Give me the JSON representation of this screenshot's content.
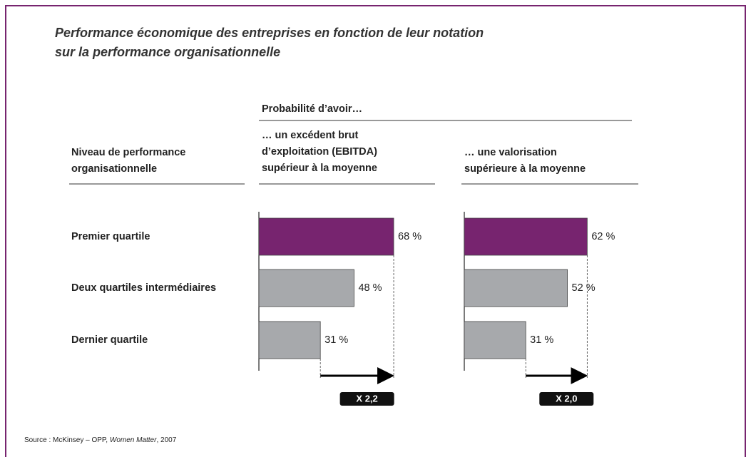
{
  "title_lines": [
    "Performance économique des entreprises en fonction de leur notation",
    "sur la performance organisationnelle"
  ],
  "group_label": "Probabilité d’avoir…",
  "row_header_lines": [
    "Niveau de performance",
    "organisationnelle"
  ],
  "chart_data": [
    {
      "type": "bar",
      "orientation": "horizontal",
      "title_lines": [
        "… un excédent brut",
        "d’exploitation (EBITDA)",
        "supérieur à la moyenne"
      ],
      "categories": [
        "Premier quartile",
        "Deux quartiles intermédiaires",
        "Dernier quartile"
      ],
      "values": [
        68,
        48,
        31
      ],
      "value_labels": [
        "68 %",
        "48 %",
        "31 %"
      ],
      "colors": [
        "#77246f",
        "#a7a9ac",
        "#a7a9ac"
      ],
      "xlim": [
        0,
        100
      ],
      "annotation": "X 2,2"
    },
    {
      "type": "bar",
      "orientation": "horizontal",
      "title_lines": [
        "… une valorisation",
        "supérieure à la moyenne"
      ],
      "values": [
        62,
        52,
        31
      ],
      "value_labels": [
        "62 %",
        "52 %",
        "31 %"
      ],
      "colors": [
        "#77246f",
        "#a7a9ac",
        "#a7a9ac"
      ],
      "xlim": [
        0,
        100
      ],
      "annotation": "X 2,0"
    }
  ],
  "source": {
    "prefix": "Source : McKinsey – OPP, ",
    "italic": "Women Matter",
    "suffix": ", 2007"
  }
}
